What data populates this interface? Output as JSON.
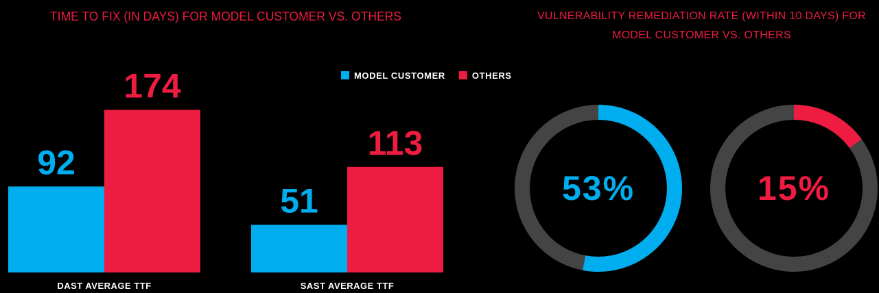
{
  "chart_data": [
    {
      "type": "bar",
      "title": "TIME TO FIX (IN DAYS) FOR MODEL CUSTOMER VS. OTHERS",
      "categories": [
        "DAST AVERAGE TTF",
        "SAST AVERAGE TTF"
      ],
      "series": [
        {
          "name": "MODEL CUSTOMER",
          "color": "#00aeef",
          "values": [
            92,
            51
          ]
        },
        {
          "name": "OTHERS",
          "color": "#ed1c40",
          "values": [
            174,
            113
          ]
        }
      ]
    },
    {
      "type": "donut",
      "title": "VULNERABILITY REMEDIATION RATE (WITHIN 10 DAYS) FOR MODEL CUSTOMER VS. OTHERS",
      "categories": [
        "MODEL CUSTOMER",
        "OTHERS"
      ],
      "values": [
        53,
        15
      ],
      "value_labels": [
        "53%",
        "15%"
      ],
      "colors": [
        "#00aeef",
        "#ed1c40"
      ],
      "track_color": "#444444"
    }
  ]
}
